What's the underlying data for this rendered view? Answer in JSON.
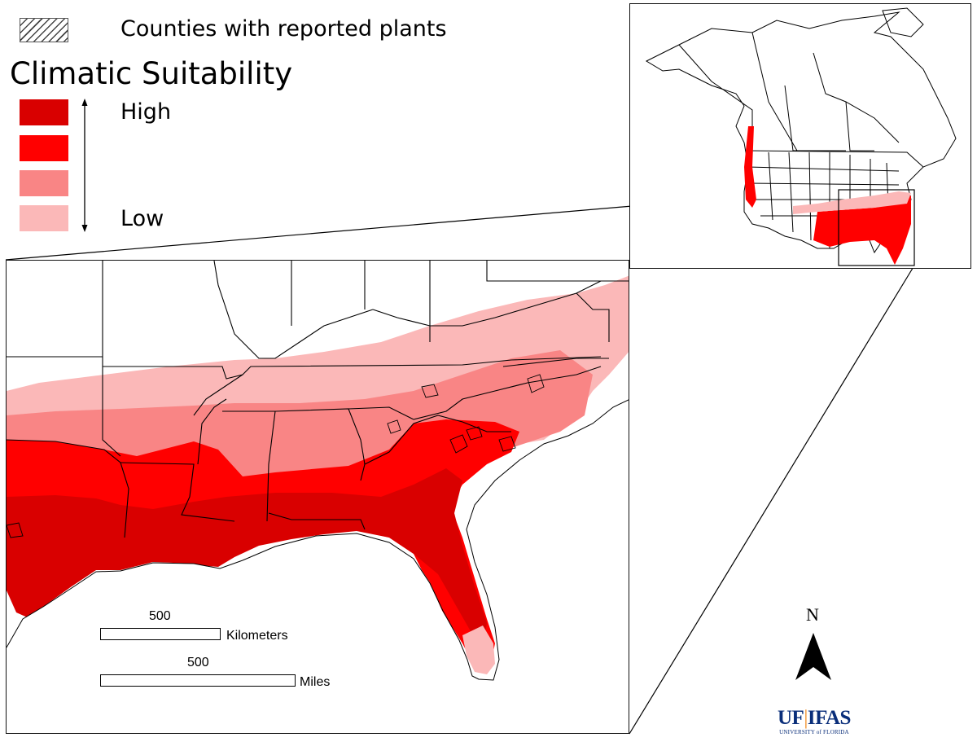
{
  "legend": {
    "hatch_label": "Counties with reported plants",
    "title": "Climatic Suitability",
    "high_label": "High",
    "low_label": "Low",
    "levels": [
      {
        "name": "level-1-highest",
        "color": "#d90000"
      },
      {
        "name": "level-2",
        "color": "#ff0000"
      },
      {
        "name": "level-3",
        "color": "#f98585"
      },
      {
        "name": "level-4-lowest",
        "color": "#fbb8b8"
      }
    ]
  },
  "scalebar": {
    "km_value": "500",
    "km_unit": "Kilometers",
    "mi_value": "500",
    "mi_unit": "Miles"
  },
  "north_arrow": {
    "label": "N"
  },
  "logo": {
    "main_left": "UF",
    "main_right": "IFAS",
    "sub": "UNIVERSITY of FLORIDA"
  }
}
